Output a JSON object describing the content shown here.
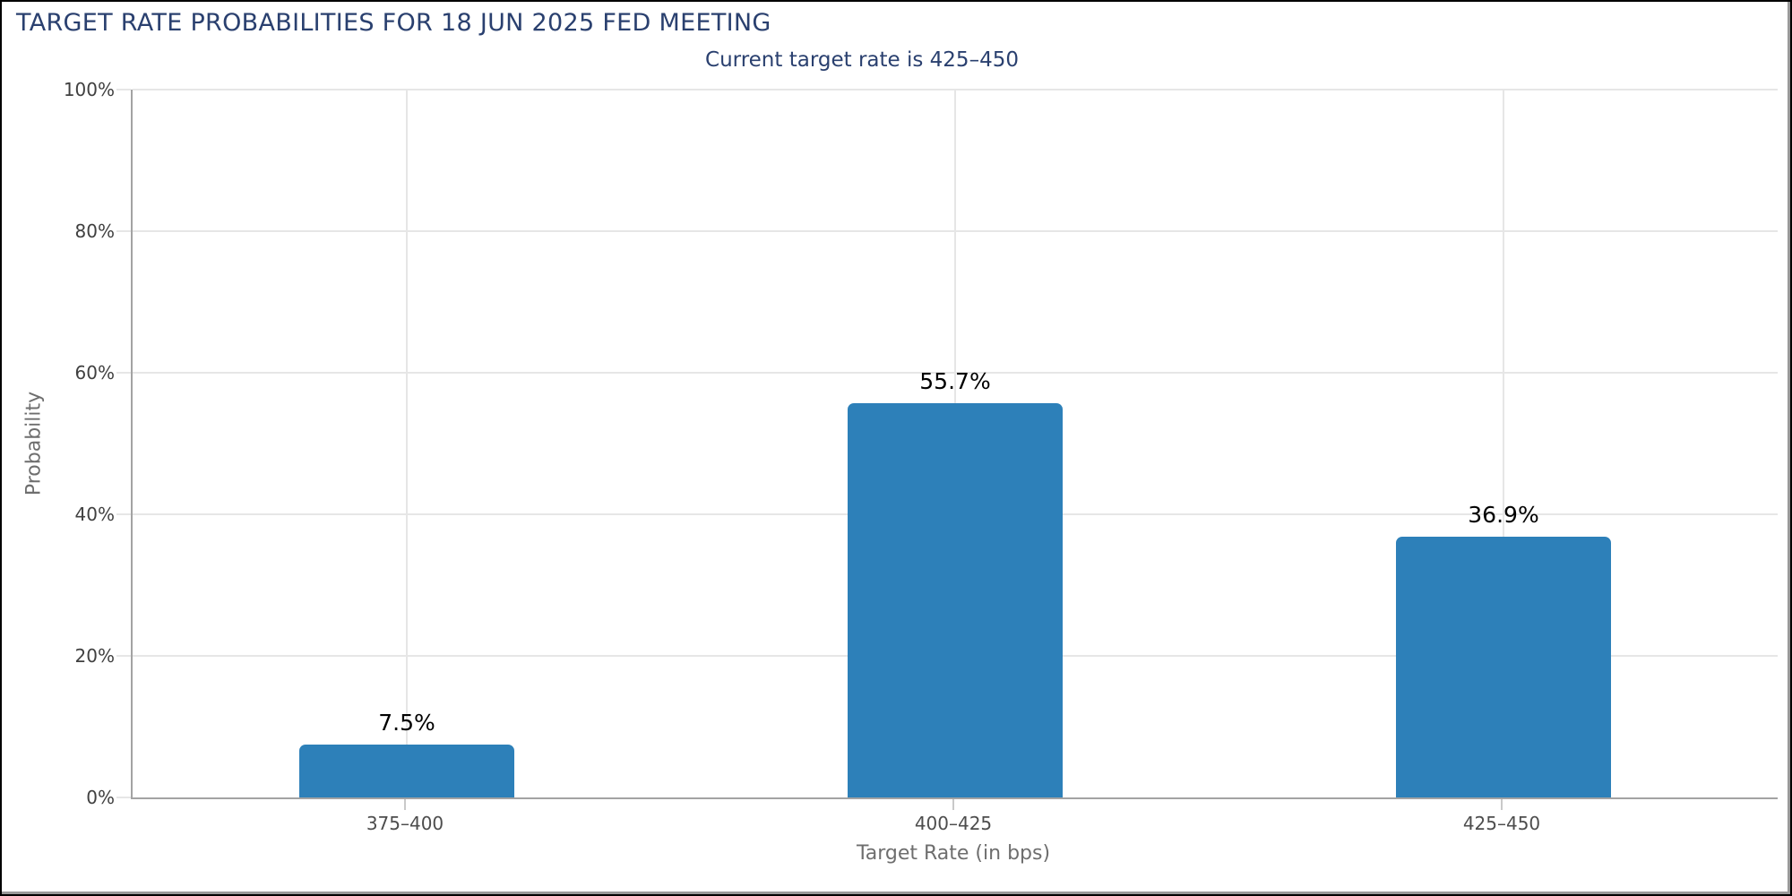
{
  "chart_data": {
    "type": "bar",
    "title": "TARGET RATE PROBABILITIES FOR 18 JUN 2025 FED MEETING",
    "subtitle": "Current target rate is 425–450",
    "categories": [
      "375–400",
      "400–425",
      "425–450"
    ],
    "values": [
      7.5,
      55.7,
      36.9
    ],
    "value_labels": [
      "7.5%",
      "55.7%",
      "36.9%"
    ],
    "xlabel": "Target Rate (in bps)",
    "ylabel": "Probability",
    "ylim": [
      0,
      100
    ],
    "yticks": [
      0,
      20,
      40,
      60,
      80,
      100
    ],
    "ytick_labels": [
      "0%",
      "20%",
      "40%",
      "60%",
      "80%",
      "100%"
    ],
    "grid": true,
    "legend_position": "none",
    "colors": {
      "bar": "#2d80b9",
      "title": "#2a406f",
      "grid": "#e6e6e6",
      "axis_line": "#a3a3a3",
      "tick_label": "#404040",
      "category_label": "#4d4d4d",
      "axis_title": "#6e6e6e",
      "value_label": "#000000"
    }
  }
}
